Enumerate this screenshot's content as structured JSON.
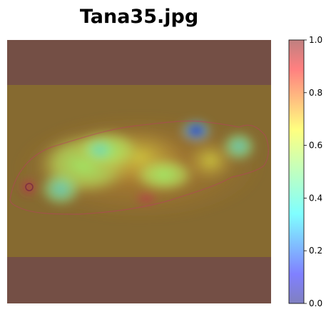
{
  "chart_data": {
    "type": "heatmap",
    "title": "Tana35.jpg",
    "xlabel": "",
    "ylabel": "",
    "colorbar": {
      "vmin": 0.0,
      "vmax": 1.0,
      "ticks": [
        "0.0",
        "0.2",
        "0.4",
        "0.6",
        "0.8",
        "1.0"
      ],
      "colormap": "jet",
      "alpha": 0.5
    },
    "axes_visible": false,
    "background_band_color": "#744f45",
    "image_color": "#8a6a2c"
  }
}
